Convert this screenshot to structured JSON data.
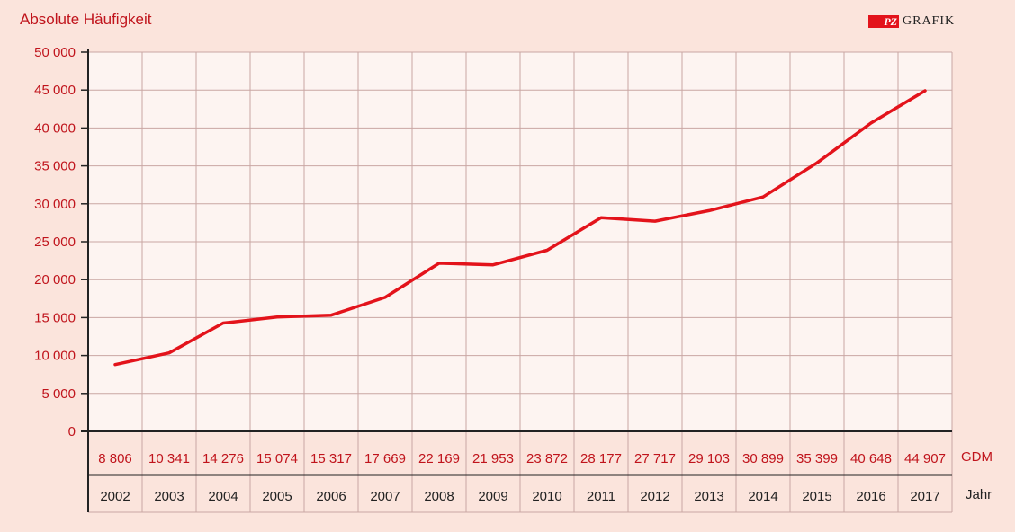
{
  "header": {
    "y_title": "Absolute Häufigkeit",
    "logo_mark": "PZ",
    "logo_text": "GRAFIK"
  },
  "table": {
    "gdm_label": "GDM",
    "year_label": "Jahr",
    "gdm_values": [
      "8 806",
      "10 341",
      "14 276",
      "15 074",
      "15 317",
      "17 669",
      "22 169",
      "21 953",
      "23 872",
      "28 177",
      "27 717",
      "29 103",
      "30 899",
      "35 399",
      "40 648",
      "44 907"
    ]
  },
  "colors": {
    "background": "#fbe4dc",
    "plot_background": "#fdf4f1",
    "grid": "#c9a6a3",
    "line": "#e3131b",
    "label_red": "#c0141c"
  },
  "chart_data": {
    "type": "line",
    "title": "",
    "ylabel": "Absolute Häufigkeit",
    "xlabel": "Jahr",
    "categories": [
      "2002",
      "2003",
      "2004",
      "2005",
      "2006",
      "2007",
      "2008",
      "2009",
      "2010",
      "2011",
      "2012",
      "2013",
      "2014",
      "2015",
      "2016",
      "2017"
    ],
    "series": [
      {
        "name": "GDM",
        "values": [
          8806,
          10341,
          14276,
          15074,
          15317,
          17669,
          22169,
          21953,
          23872,
          28177,
          27717,
          29103,
          30899,
          35399,
          40648,
          44907
        ]
      }
    ],
    "ylim": [
      0,
      50000
    ],
    "yticks": [
      0,
      5000,
      10000,
      15000,
      20000,
      25000,
      30000,
      35000,
      40000,
      45000,
      50000
    ],
    "ytick_labels": [
      "0",
      "5 000",
      "10 000",
      "15 000",
      "20 000",
      "25 000",
      "30 000",
      "35 000",
      "40 000",
      "45 000",
      "50 000"
    ],
    "grid": true
  }
}
